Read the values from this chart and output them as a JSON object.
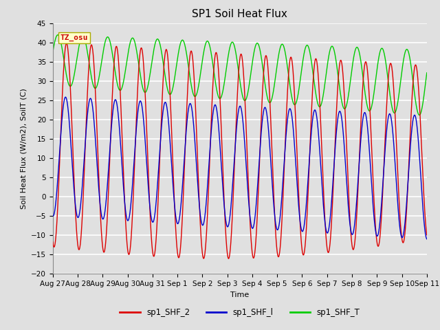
{
  "title": "SP1 Soil Heat Flux",
  "xlabel": "Time",
  "ylabel": "Soil Heat Flux (W/m2), SoilT (C)",
  "ylim": [
    -20,
    45
  ],
  "yticks": [
    -20,
    -15,
    -10,
    -5,
    0,
    5,
    10,
    15,
    20,
    25,
    30,
    35,
    40,
    45
  ],
  "bg_color": "#e0e0e0",
  "plot_bg_color": "#e0e0e0",
  "grid_color": "#ffffff",
  "legend_labels": [
    "sp1_SHF_2",
    "sp1_SHF_l",
    "sp1_SHF_T"
  ],
  "legend_colors": [
    "#dd0000",
    "#0000cc",
    "#00cc00"
  ],
  "tz_label": "TZ_osu",
  "tz_box_color": "#ffffcc",
  "tz_text_color": "#cc0000",
  "tz_box_edge": "#aaaa00",
  "num_days": 15,
  "x_tick_labels": [
    "Aug 27",
    "Aug 28",
    "Aug 29",
    "Aug 30",
    "Aug 31",
    "Sep 1",
    "Sep 2",
    "Sep 3",
    "Sep 4",
    "Sep 5",
    "Sep 6",
    "Sep 7",
    "Sep 8",
    "Sep 9",
    "Sep 10",
    "Sep 11"
  ],
  "line_width": 1.0,
  "title_fontsize": 11,
  "axis_fontsize": 8,
  "tick_fontsize": 7.5
}
